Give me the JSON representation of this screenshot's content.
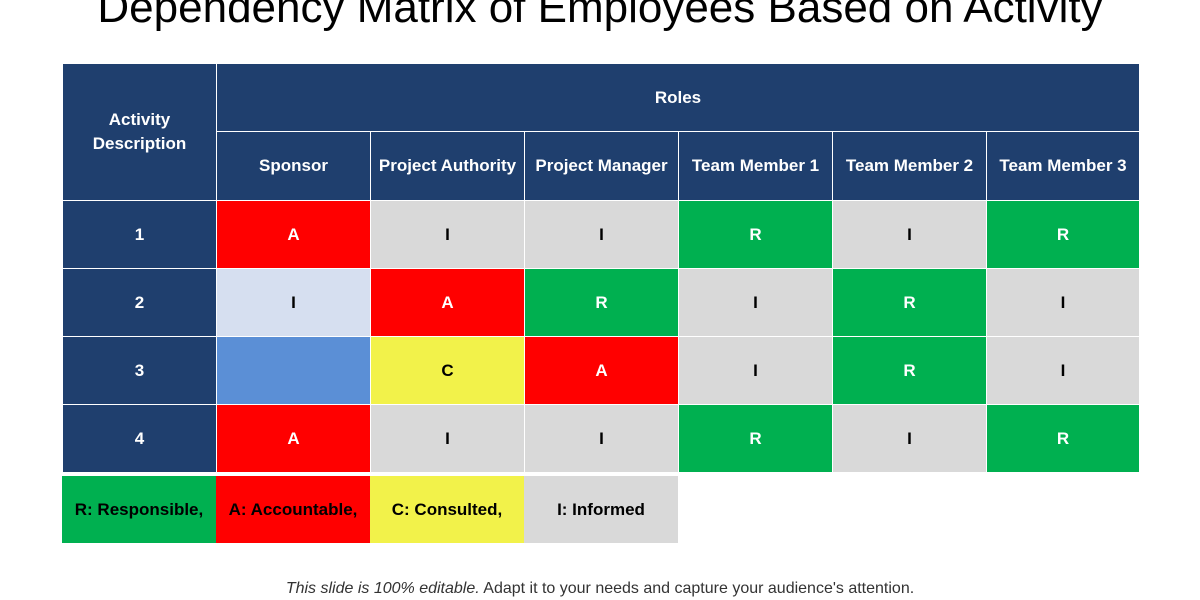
{
  "title": "Dependency Matrix of Employees Based on Activity",
  "header": {
    "activity_label": "Activity Description",
    "roles_label": "Roles",
    "roles": [
      "Sponsor",
      "Project Authority",
      "Project Manager",
      "Team Member 1",
      "Team Member 2",
      "Team Member 3"
    ]
  },
  "rows": [
    {
      "activity": "1",
      "cells": [
        "A",
        "I",
        "I",
        "R",
        "I",
        "R"
      ]
    },
    {
      "activity": "2",
      "cells": [
        "I",
        "A",
        "R",
        "I",
        "R",
        "I"
      ]
    },
    {
      "activity": "3",
      "cells": [
        "",
        "C",
        "A",
        "I",
        "R",
        "I"
      ]
    },
    {
      "activity": "4",
      "cells": [
        "A",
        "I",
        "I",
        "R",
        "I",
        "R"
      ]
    }
  ],
  "cell_colors": {
    "A": "#ff0000",
    "R": "#00b050",
    "C": "#f2f24a",
    "I": "#d9d9d9",
    "I_light": "#d6dff0",
    "blank": "#5b8fd6"
  },
  "cell_text_colors": {
    "A": "#ffffff",
    "R": "#ffffff",
    "C": "#000000",
    "I": "#000000"
  },
  "legend": [
    {
      "label": "R: Responsible,",
      "color": "#00b050"
    },
    {
      "label": "A: Accountable,",
      "color": "#ff0000"
    },
    {
      "label": "C: Consulted,",
      "color": "#f2f24a"
    },
    {
      "label": "I: Informed",
      "color": "#d9d9d9"
    }
  ],
  "footer": {
    "italic": "This slide is 100% editable.",
    "normal": " Adapt it to your needs and capture your audience's attention."
  }
}
